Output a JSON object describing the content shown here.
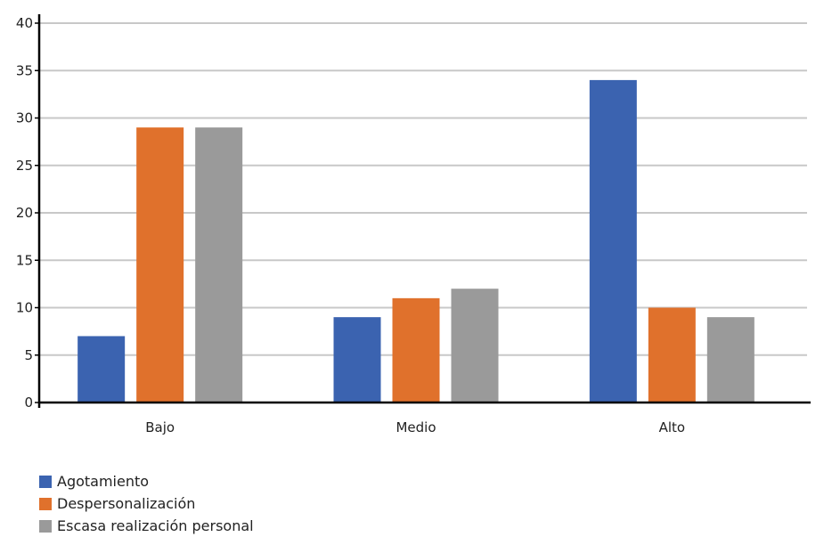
{
  "chart_data": {
    "type": "bar",
    "categories": [
      "Bajo",
      "Medio",
      "Alto"
    ],
    "series": [
      {
        "name": "Agotamiento",
        "values": [
          7,
          9,
          34
        ],
        "color": "#3b63b0"
      },
      {
        "name": "Despersonalización",
        "values": [
          29,
          11,
          10
        ],
        "color": "#e0712c"
      },
      {
        "name": "Escasa realización personal",
        "values": [
          29,
          12,
          9
        ],
        "color": "#9a9a9a"
      }
    ],
    "yticks": [
      0,
      5,
      10,
      15,
      20,
      25,
      30,
      35,
      40
    ],
    "ylim": [
      0,
      40
    ],
    "grid": true,
    "legend_position": "bottom-left",
    "gridline_color": "#c8c8c8",
    "axis_color": "#000000"
  }
}
